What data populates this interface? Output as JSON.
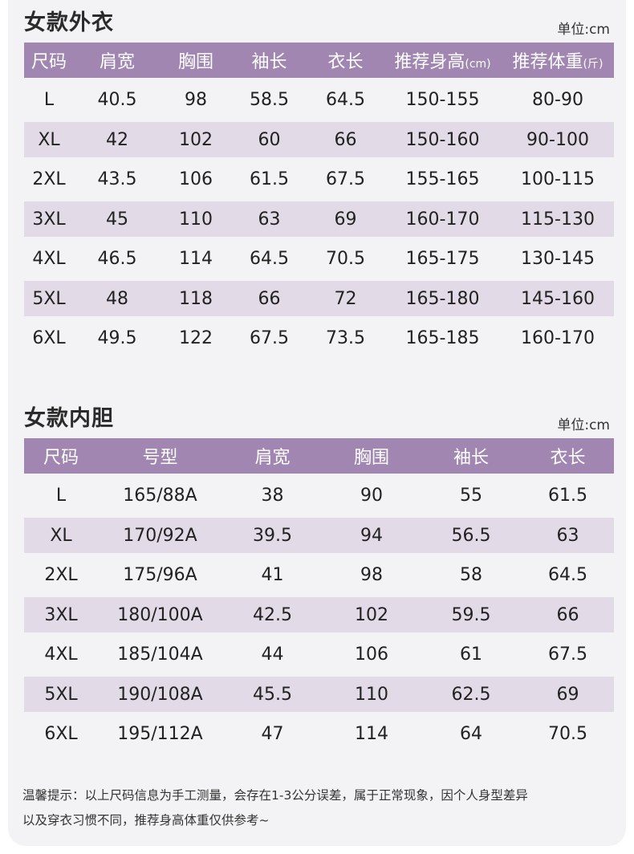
{
  "outerwear": {
    "title": "女款外衣",
    "unit": "单位:cm",
    "headers": [
      "尺码",
      "肩宽",
      "胸围",
      "袖长",
      "衣长",
      "推荐身高",
      "推荐体重"
    ],
    "header_suffix": {
      "height": "(cm)",
      "weight": "(斤)"
    },
    "rows": [
      [
        "L",
        "40.5",
        "98",
        "58.5",
        "64.5",
        "150-155",
        "80-90"
      ],
      [
        "XL",
        "42",
        "102",
        "60",
        "66",
        "150-160",
        "90-100"
      ],
      [
        "2XL",
        "43.5",
        "106",
        "61.5",
        "67.5",
        "155-165",
        "100-115"
      ],
      [
        "3XL",
        "45",
        "110",
        "63",
        "69",
        "160-170",
        "115-130"
      ],
      [
        "4XL",
        "46.5",
        "114",
        "64.5",
        "70.5",
        "165-175",
        "130-145"
      ],
      [
        "5XL",
        "48",
        "118",
        "66",
        "72",
        "165-180",
        "145-160"
      ],
      [
        "6XL",
        "49.5",
        "122",
        "67.5",
        "73.5",
        "165-185",
        "160-170"
      ]
    ]
  },
  "liner": {
    "title": "女款内胆",
    "unit": "单位:cm",
    "headers": [
      "尺码",
      "号型",
      "肩宽",
      "胸围",
      "袖长",
      "衣长"
    ],
    "rows": [
      [
        "L",
        "165/88A",
        "38",
        "90",
        "55",
        "61.5"
      ],
      [
        "XL",
        "170/92A",
        "39.5",
        "94",
        "56.5",
        "63"
      ],
      [
        "2XL",
        "175/96A",
        "41",
        "98",
        "58",
        "64.5"
      ],
      [
        "3XL",
        "180/100A",
        "42.5",
        "102",
        "59.5",
        "66"
      ],
      [
        "4XL",
        "185/104A",
        "44",
        "106",
        "61",
        "67.5"
      ],
      [
        "5XL",
        "190/108A",
        "45.5",
        "110",
        "62.5",
        "69"
      ],
      [
        "6XL",
        "195/112A",
        "47",
        "114",
        "64",
        "70.5"
      ]
    ]
  },
  "note": {
    "line1": "温馨提示：以上尺码信息为手工测量，会存在1-3公分误差，属于正常现象，因个人身型差异",
    "line2": "以及穿衣习惯不同，推荐身高体重仅供参考~"
  },
  "colors": {
    "header_bg": "#a086b1",
    "stripe_bg": "#e3dae8",
    "page_bg": "#f3f2f4"
  }
}
